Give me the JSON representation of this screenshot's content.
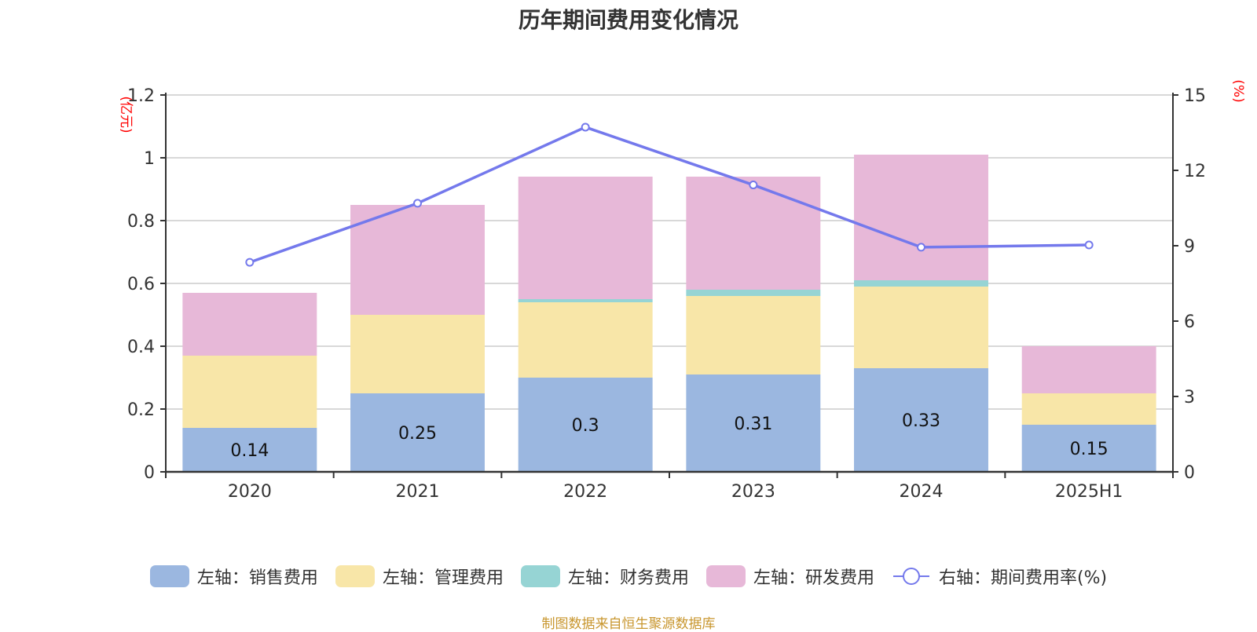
{
  "title": "历年期间费用变化情况",
  "source": "制图数据来自恒生聚源数据库",
  "chart_data": {
    "type": "bar",
    "stacked": true,
    "title": "历年期间费用变化情况",
    "categories": [
      "2020",
      "2021",
      "2022",
      "2023",
      "2024",
      "2025H1"
    ],
    "left_axis": {
      "label": "(亿元)",
      "range": [
        0,
        1.2
      ],
      "ticks": [
        "0",
        "0.2",
        "0.4",
        "0.6",
        "0.8",
        "1",
        "1.2"
      ]
    },
    "right_axis": {
      "label": "(%)",
      "range": [
        0,
        15
      ],
      "ticks": [
        "0",
        "3",
        "6",
        "9",
        "12",
        "15"
      ]
    },
    "grid": true,
    "legend_position": "bottom",
    "series": [
      {
        "name": "左轴：销售费用",
        "type": "bar",
        "axis": "left",
        "color": "#9bb7e0",
        "values": [
          0.14,
          0.25,
          0.3,
          0.31,
          0.33,
          0.15
        ],
        "data_labels": [
          "0.14",
          "0.25",
          "0.3",
          "0.31",
          "0.33",
          "0.15"
        ]
      },
      {
        "name": "左轴：管理费用",
        "type": "bar",
        "axis": "left",
        "color": "#f8e6a8",
        "values": [
          0.23,
          0.25,
          0.24,
          0.25,
          0.26,
          0.1
        ]
      },
      {
        "name": "左轴：财务费用",
        "type": "bar",
        "axis": "left",
        "color": "#96d4d4",
        "values": [
          0.0,
          0.0,
          0.01,
          0.02,
          0.02,
          0.0
        ]
      },
      {
        "name": "左轴：研发费用",
        "type": "bar",
        "axis": "left",
        "color": "#e7b8d8",
        "values": [
          0.2,
          0.35,
          0.39,
          0.36,
          0.4,
          0.15
        ]
      },
      {
        "name": "右轴：期间费用率(%)",
        "type": "line",
        "axis": "right",
        "color": "#7479ec",
        "values": [
          8.34,
          10.69,
          13.72,
          11.42,
          8.94,
          9.03
        ]
      }
    ]
  }
}
